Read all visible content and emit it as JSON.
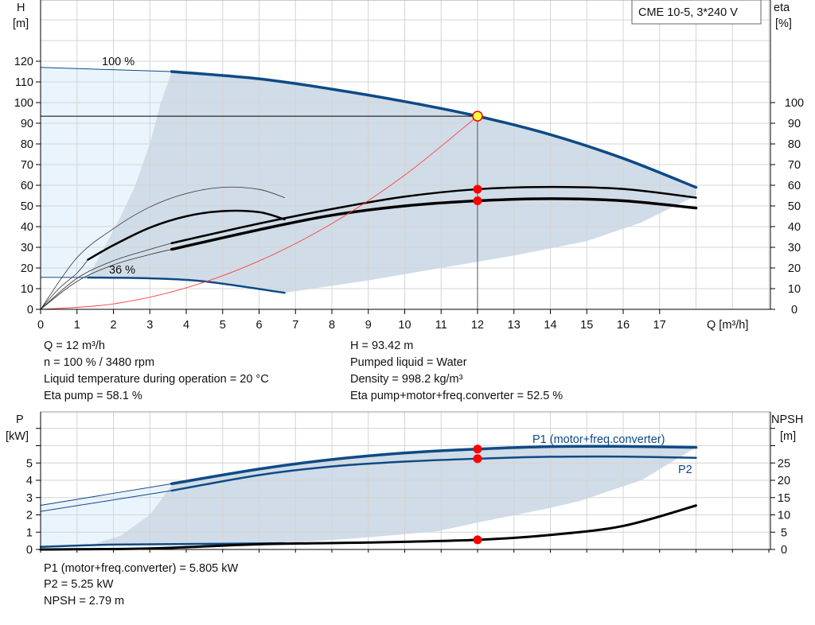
{
  "legend_box": "CME 10-5, 3*240 V",
  "colors": {
    "curve_blue": "#0d4a86",
    "operating_point": "#ff0000",
    "system_curve": "#ff4040",
    "fill_dark": "#d0dce7",
    "fill_light": "#eaf4fd",
    "duty_point_fill": "#ffff40"
  },
  "chart_data": [
    {
      "type": "line",
      "ylabel_left": [
        "H",
        "[m]"
      ],
      "ylabel_right": [
        "eta",
        "[%]"
      ],
      "xlabel": "Q [m³/h]",
      "x_ticks": [
        "0",
        "1",
        "2",
        "3",
        "4",
        "5",
        "6",
        "7",
        "8",
        "9",
        "10",
        "11",
        "12",
        "13",
        "14",
        "15",
        "16",
        "17"
      ],
      "y_ticks_left": [
        "0",
        "10",
        "20",
        "30",
        "40",
        "50",
        "60",
        "70",
        "80",
        "90",
        "100",
        "110",
        "120"
      ],
      "y_ticks_right": [
        "0",
        "10",
        "20",
        "30",
        "40",
        "50",
        "60",
        "70",
        "80",
        "90",
        "100"
      ],
      "xlim": [
        0,
        20
      ],
      "ylim": [
        0,
        150
      ],
      "grid": true,
      "annotations": {
        "speed_max": "100 %",
        "speed_min": "36 %"
      },
      "series": [
        {
          "label": "100 %",
          "points": [
            [
              0,
              117
            ],
            [
              3.6,
              115
            ],
            [
              6,
              111.5
            ],
            [
              8,
              106.5
            ],
            [
              10,
              100.5
            ],
            [
              12,
              93.42
            ],
            [
              14,
              84.5
            ],
            [
              16,
              73
            ],
            [
              18,
              59
            ]
          ]
        },
        {
          "label": "36 %",
          "points": [
            [
              0,
              15.5
            ],
            [
              1.3,
              15.4
            ],
            [
              3,
              15
            ],
            [
              4.5,
              13.5
            ],
            [
              6.7,
              8
            ]
          ]
        },
        {
          "name": "eta pump",
          "points": [
            [
              3.6,
              32
            ],
            [
              6,
              41.5
            ],
            [
              8,
              48.5
            ],
            [
              10,
              54.5
            ],
            [
              12,
              58.1
            ],
            [
              14,
              59.2
            ],
            [
              16,
              58.2
            ],
            [
              18,
              54
            ]
          ]
        },
        {
          "name": "eta total",
          "points": [
            [
              3.6,
              29
            ],
            [
              6,
              38.5
            ],
            [
              8,
              45.5
            ],
            [
              10,
              50
            ],
            [
              12,
              52.5
            ],
            [
              14,
              53.5
            ],
            [
              16,
              52.5
            ],
            [
              18,
              49
            ]
          ]
        },
        {
          "name": "eta pump 36%",
          "points": [
            [
              1.3,
              24
            ],
            [
              2,
              31
            ],
            [
              3,
              39.5
            ],
            [
              4,
              45
            ],
            [
              5,
              47.5
            ],
            [
              6,
              47
            ],
            [
              6.7,
              43.5
            ]
          ]
        },
        {
          "name": "eta 36% upper",
          "points": [
            [
              0,
              0
            ],
            [
              1,
              25
            ],
            [
              2,
              39
            ],
            [
              3,
              49.5
            ],
            [
              4,
              56
            ],
            [
              5,
              59
            ],
            [
              6,
              58
            ],
            [
              6.7,
              54
            ]
          ]
        },
        {
          "name": "system curve",
          "points": [
            [
              0,
              0
            ],
            [
              2,
              2.6
            ],
            [
              4,
              10.4
            ],
            [
              6,
              23.4
            ],
            [
              8,
              41.5
            ],
            [
              10,
              64.9
            ],
            [
              12,
              93.42
            ]
          ]
        }
      ],
      "operating_points": [
        {
          "q": 12,
          "h": 93.42
        },
        {
          "q": 12,
          "eta": 58.1
        },
        {
          "q": 12,
          "eta": 52.5
        }
      ]
    },
    {
      "type": "line",
      "ylabel_left": [
        "P",
        "[kW]"
      ],
      "ylabel_right": [
        "NPSH",
        "[m]"
      ],
      "y_ticks_left": [
        "0",
        "1",
        "2",
        "3",
        "4",
        "5"
      ],
      "y_ticks_right": [
        "0",
        "5",
        "10",
        "15",
        "20",
        "25"
      ],
      "xlim": [
        0,
        20
      ],
      "ylim_left": [
        0,
        7.9
      ],
      "ylim_right": [
        0,
        39.7
      ],
      "grid": true,
      "series": [
        {
          "name": "P1 (motor+freq.converter)",
          "points": [
            [
              0,
              2.55
            ],
            [
              3.6,
              3.8
            ],
            [
              6,
              4.65
            ],
            [
              8,
              5.2
            ],
            [
              10,
              5.58
            ],
            [
              12,
              5.805
            ],
            [
              14,
              5.95
            ],
            [
              16,
              5.96
            ],
            [
              18,
              5.9
            ]
          ]
        },
        {
          "name": "P2",
          "points": [
            [
              0,
              2.2
            ],
            [
              3.6,
              3.4
            ],
            [
              6,
              4.3
            ],
            [
              8,
              4.8
            ],
            [
              10,
              5.08
            ],
            [
              12,
              5.25
            ],
            [
              14,
              5.36
            ],
            [
              16,
              5.37
            ],
            [
              18,
              5.3
            ]
          ]
        },
        {
          "name": "P 36%",
          "points": [
            [
              0,
              0.15
            ],
            [
              2,
              0.28
            ],
            [
              4.5,
              0.32
            ],
            [
              6.7,
              0.36
            ]
          ]
        },
        {
          "name": "NPSH",
          "points": [
            [
              0,
              0
            ],
            [
              3,
              0.3
            ],
            [
              6,
              1.5
            ],
            [
              9,
              2.0
            ],
            [
              12,
              2.79
            ],
            [
              14,
              4.2
            ],
            [
              16,
              6.8
            ],
            [
              18,
              12.7
            ]
          ]
        }
      ],
      "operating_points": [
        {
          "q": 12,
          "p": 5.805
        },
        {
          "q": 12,
          "p": 5.25
        },
        {
          "q": 12,
          "npsh": 2.79
        }
      ]
    }
  ],
  "info_top": {
    "left": [
      "Q = 12 m³/h",
      "n = 100 % / 3480 rpm",
      "Liquid temperature during operation = 20 °C",
      "Eta pump = 58.1 %"
    ],
    "right": [
      "H = 93.42 m",
      "Pumped liquid = Water",
      "Density = 998.2 kg/m³",
      "Eta pump+motor+freq.converter = 52.5 %"
    ]
  },
  "info_bottom": [
    "P1 (motor+freq.converter) = 5.805 kW",
    "P2 = 5.25 kW",
    "NPSH = 2.79 m"
  ]
}
